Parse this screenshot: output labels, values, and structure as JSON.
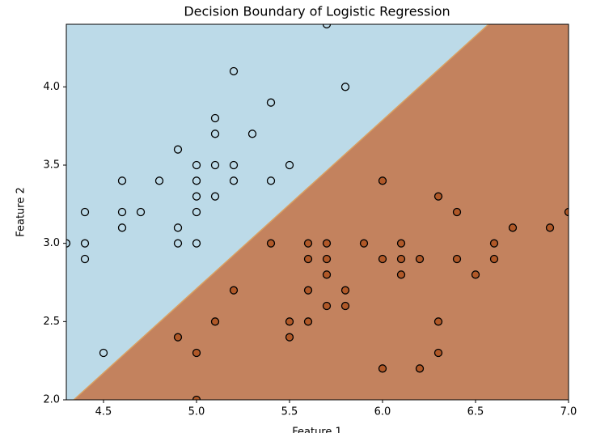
{
  "chart_data": {
    "type": "scatter",
    "title": "Decision Boundary of Logistic Regression",
    "x_label": "Feature 1",
    "y_label": "Feature 2",
    "xlim": [
      4.3,
      7.0
    ],
    "ylim": [
      2.0,
      4.4
    ],
    "xticks": [
      4.5,
      {
        "value": 5,
        "label": "5.0"
      },
      5.5,
      {
        "value": 6,
        "label": "6.0"
      },
      6.5,
      {
        "value": 7,
        "label": "7.0"
      }
    ],
    "yticks": [
      {
        "value": 2,
        "label": "2.0"
      },
      2.5,
      {
        "value": 3,
        "label": "3.0"
      },
      3.5,
      {
        "value": 4,
        "label": "4.0"
      }
    ],
    "regions": {
      "colors": [
        "#bcdae8",
        "#c3825e"
      ]
    },
    "decision_boundary": {
      "x": [
        4.34,
        6.57
      ],
      "y": [
        2.0,
        4.4
      ],
      "color": "#d9a062"
    },
    "series": [
      {
        "color": "#bcdae8",
        "x": [
          4.3,
          4.4,
          4.4,
          4.4,
          4.5,
          4.6,
          4.6,
          4.6,
          4.7,
          4.8,
          4.9,
          4.9,
          4.9,
          5.0,
          5.0,
          5.0,
          5.0,
          5.0,
          5.1,
          5.1,
          5.1,
          5.1,
          5.2,
          5.2,
          5.2,
          5.3,
          5.4,
          5.4,
          5.5,
          5.7,
          5.8
        ],
        "values": [
          3.0,
          3.2,
          3.0,
          2.9,
          2.3,
          3.4,
          3.2,
          3.1,
          3.2,
          3.4,
          3.6,
          3.1,
          3.0,
          3.5,
          3.4,
          3.3,
          3.2,
          3.0,
          3.8,
          3.7,
          3.5,
          3.3,
          4.1,
          3.5,
          3.4,
          3.7,
          3.9,
          3.4,
          3.5,
          4.4,
          4.0
        ]
      },
      {
        "color": "#b15928",
        "x": [
          4.9,
          5.0,
          5.0,
          5.1,
          5.2,
          5.4,
          5.5,
          5.5,
          5.6,
          5.6,
          5.6,
          5.6,
          5.7,
          5.7,
          5.7,
          5.7,
          5.8,
          5.8,
          5.9,
          6.0,
          6.0,
          6.0,
          6.1,
          6.1,
          6.1,
          6.2,
          6.2,
          6.3,
          6.3,
          6.3,
          6.4,
          6.4,
          6.5,
          6.6,
          6.6,
          6.7,
          6.9,
          7.0
        ],
        "values": [
          2.4,
          2.3,
          2.0,
          2.5,
          2.7,
          3.0,
          2.5,
          2.4,
          3.0,
          2.9,
          2.7,
          2.5,
          3.0,
          2.9,
          2.8,
          2.6,
          2.7,
          2.6,
          3.0,
          3.4,
          2.9,
          2.2,
          3.0,
          2.9,
          2.8,
          2.9,
          2.2,
          3.3,
          2.5,
          2.3,
          3.2,
          2.9,
          2.8,
          3.0,
          2.9,
          3.1,
          3.1,
          3.2
        ]
      }
    ]
  }
}
